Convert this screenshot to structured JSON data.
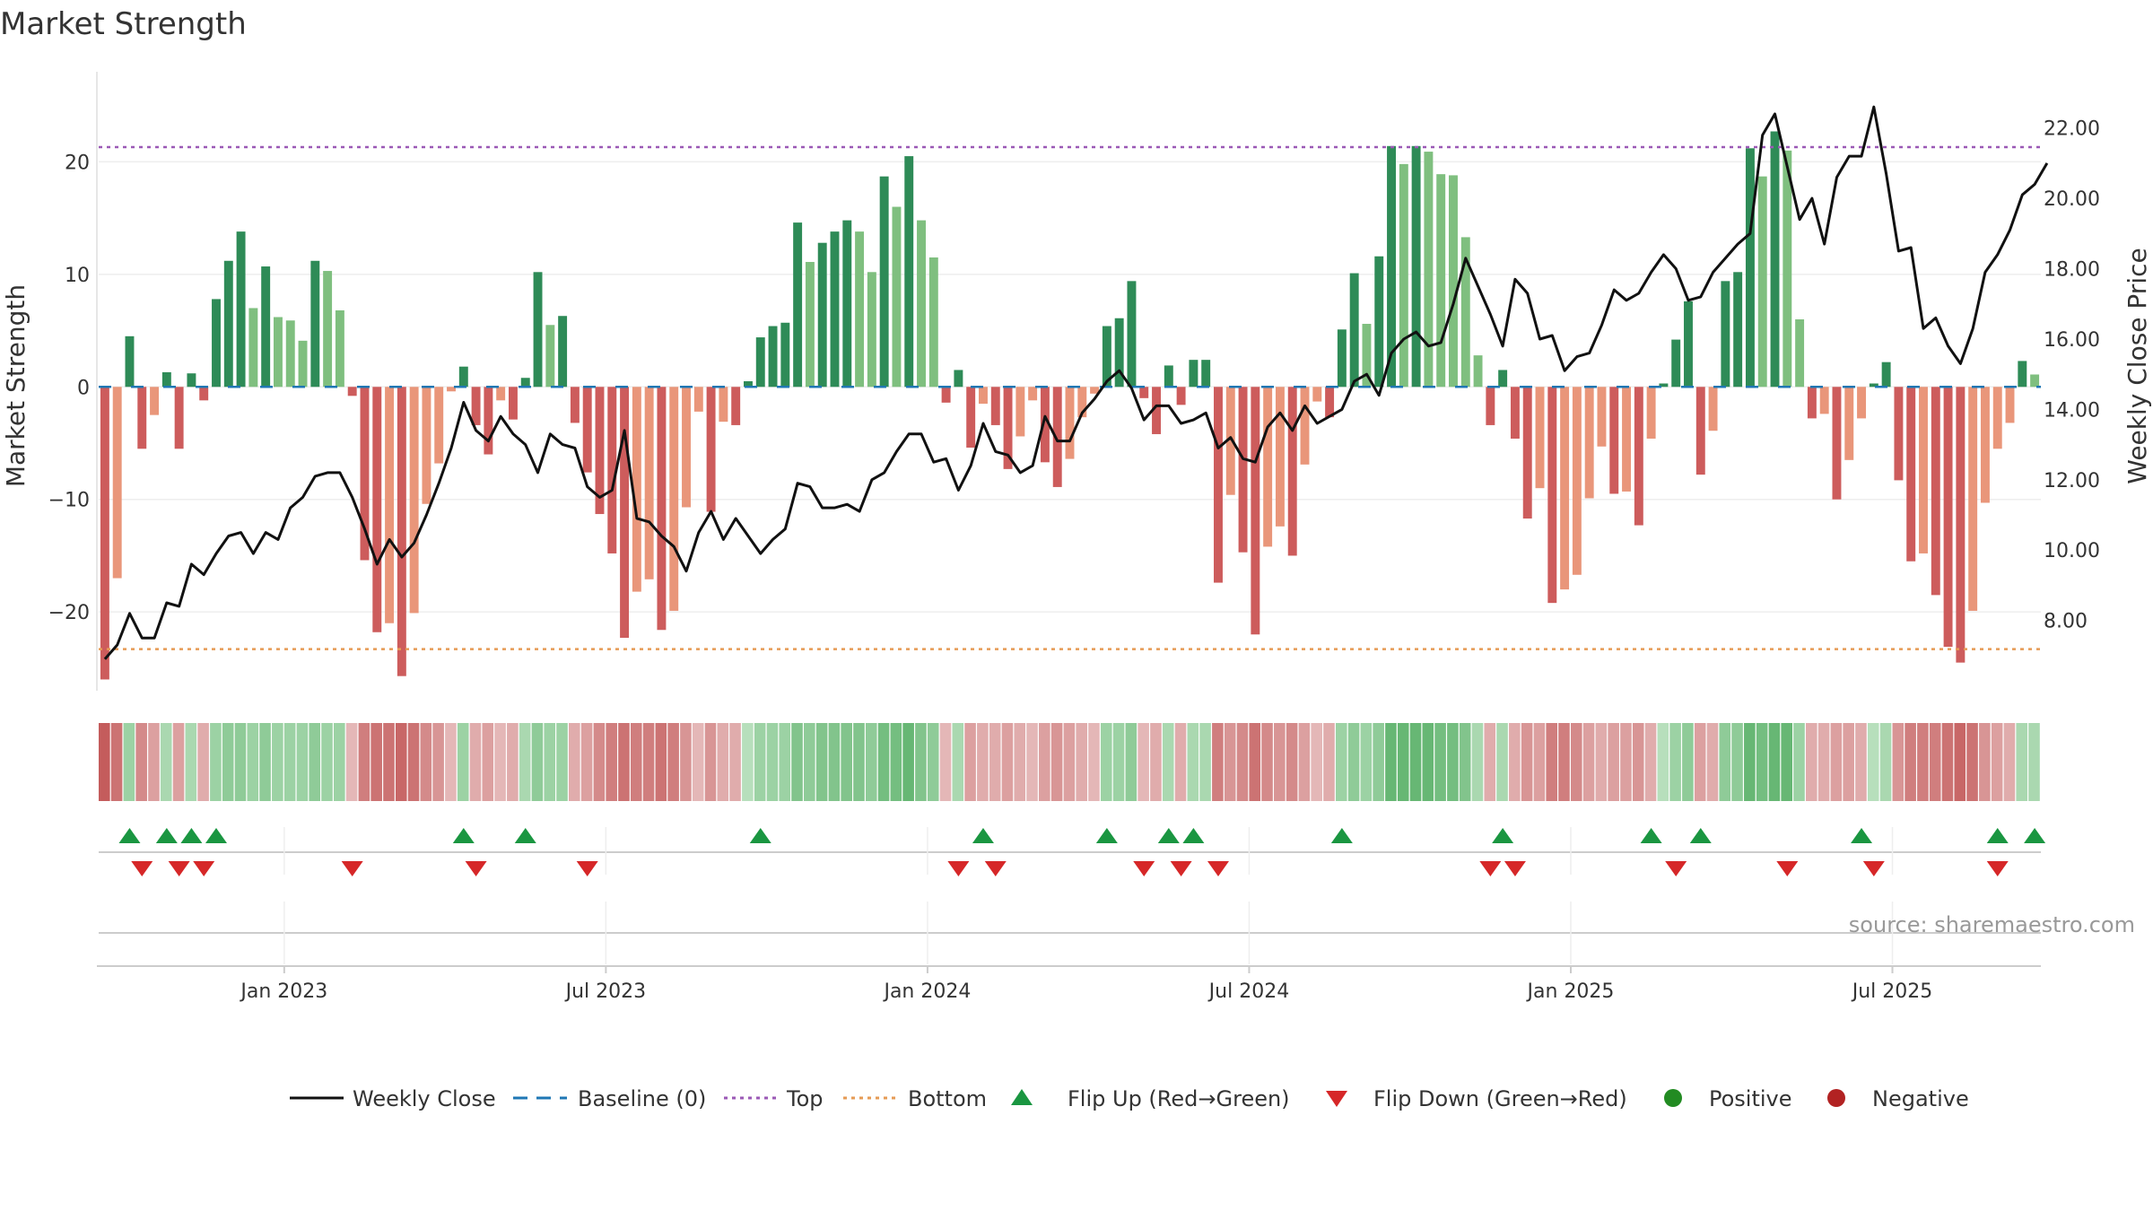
{
  "chart_data": {
    "type": "bar",
    "title": "Market Strength",
    "ylabel": "Market Strength",
    "y2label": "Weekly Close Price",
    "ylim": [
      -27,
      28
    ],
    "y2lim": [
      6.0,
      23.6
    ],
    "yticks": [
      "20",
      "10",
      "0",
      "−10",
      "−20"
    ],
    "y2ticks": [
      "22.00",
      "20.00",
      "18.00",
      "16.00",
      "14.00",
      "12.00",
      "10.00",
      "8.00"
    ],
    "xticks": [
      "Jan 2023",
      "Jul 2023",
      "Jan 2024",
      "Jul 2024",
      "Jan 2025",
      "Jul 2025"
    ],
    "top": 21.3,
    "bottom": -23.3,
    "weeks": 157,
    "start_week_before_jan2023": 15,
    "strength": [
      -26,
      -17,
      4.5,
      -5.5,
      -2.5,
      1.3,
      -5.5,
      1.2,
      -1.2,
      7.8,
      11.2,
      13.8,
      7,
      10.7,
      6.2,
      5.9,
      4.1,
      11.2,
      10.3,
      6.8,
      -0.8,
      -15.4,
      -21.8,
      -21,
      -25.7,
      -20.1,
      -10.4,
      -6.8,
      -0.4,
      1.8,
      -3.4,
      -6,
      -1.2,
      -2.9,
      0.8,
      10.2,
      5.5,
      6.3,
      -3.2,
      -7.6,
      -11.3,
      -14.8,
      -22.3,
      -18.2,
      -17.1,
      -21.6,
      -19.9,
      -10.7,
      -2.2,
      -11.1,
      -3.1,
      -3.4,
      0.5,
      4.4,
      5.4,
      5.7,
      14.6,
      11.1,
      12.8,
      13.8,
      14.8,
      13.8,
      10.2,
      18.7,
      16,
      20.5,
      14.8,
      11.5,
      -1.4,
      1.5,
      -5.4,
      -1.5,
      -3.4,
      -7.3,
      -4.4,
      -1.2,
      -6.7,
      -8.9,
      -6.4,
      -2.7,
      -0.6,
      5.4,
      6.1,
      9.4,
      -1,
      -4.2,
      1.9,
      -1.6,
      2.4,
      2.4,
      -17.4,
      -9.6,
      -14.7,
      -22,
      -14.2,
      -12.4,
      -15,
      -6.9,
      -1.3,
      -2.7,
      5.1,
      10.1,
      5.6,
      11.6,
      21.4,
      19.8,
      21.4,
      20.9,
      18.9,
      18.8,
      13.3,
      2.8,
      -3.4,
      1.5,
      -4.6,
      -11.7,
      -9,
      -19.2,
      -18,
      -16.7,
      -9.9,
      -5.3,
      -9.5,
      -9.3,
      -12.3,
      -4.6,
      0.3,
      4.2,
      7.6,
      -7.8,
      -3.9,
      9.4,
      10.2,
      21.2,
      18.7,
      22.7,
      21,
      6,
      -2.8,
      -2.4,
      -10,
      -6.5,
      -2.8,
      0.3,
      2.2,
      -8.3,
      -15.5,
      -14.8,
      -18.5,
      -23.1,
      -24.5,
      -19.9,
      -10.3,
      -5.5,
      -3.2,
      2.3,
      1.1
    ],
    "close": [
      6.9,
      7.3,
      8.2,
      7.5,
      7.5,
      8.5,
      8.4,
      9.6,
      9.3,
      9.9,
      10.4,
      10.5,
      9.9,
      10.5,
      10.3,
      11.2,
      11.5,
      12.1,
      12.2,
      12.2,
      11.5,
      10.6,
      9.6,
      10.3,
      9.8,
      10.2,
      11,
      11.9,
      12.9,
      14.2,
      13.4,
      13.1,
      13.8,
      13.3,
      13,
      12.2,
      13.3,
      13,
      12.9,
      11.8,
      11.5,
      11.7,
      13.4,
      10.9,
      10.8,
      10.4,
      10.1,
      9.4,
      10.5,
      11.1,
      10.3,
      10.9,
      10.4,
      9.9,
      10.3,
      10.6,
      11.9,
      11.8,
      11.2,
      11.2,
      11.3,
      11.1,
      12,
      12.2,
      12.8,
      13.3,
      13.3,
      12.5,
      12.6,
      11.7,
      12.4,
      13.6,
      12.8,
      12.7,
      12.2,
      12.4,
      13.8,
      13.1,
      13.1,
      13.9,
      14.3,
      14.8,
      15.1,
      14.6,
      13.7,
      14.1,
      14.1,
      13.6,
      13.7,
      13.9,
      12.9,
      13.2,
      12.6,
      12.5,
      13.5,
      13.9,
      13.4,
      14.1,
      13.6,
      13.8,
      14,
      14.8,
      15,
      14.4,
      15.6,
      16,
      16.2,
      15.8,
      15.9,
      17,
      18.3,
      17.5,
      16.7,
      15.8,
      17.7,
      17.3,
      16,
      16.1,
      15.1,
      15.5,
      15.6,
      16.4,
      17.4,
      17.1,
      17.3,
      17.9,
      18.4,
      18,
      17.1,
      17.2,
      17.9,
      18.3,
      18.7,
      19,
      21.8,
      22.4,
      20.9,
      19.4,
      20,
      18.7,
      20.6,
      21.2,
      21.2,
      22.6,
      20.7,
      18.5,
      18.6,
      16.3,
      16.6,
      15.8,
      15.3,
      16.3,
      17.9,
      18.4,
      19.1,
      20.1,
      20.4,
      21
    ],
    "heat": [
      -1,
      -0.8,
      0.4,
      -0.6,
      -0.4,
      0.3,
      -0.4,
      0.3,
      -0.3,
      0.4,
      0.5,
      0.5,
      0.4,
      0.5,
      0.4,
      0.4,
      0.4,
      0.5,
      0.4,
      0.4,
      -0.2,
      -0.7,
      -0.8,
      -0.8,
      -0.9,
      -0.8,
      -0.6,
      -0.5,
      -0.2,
      0.4,
      -0.3,
      -0.4,
      -0.2,
      -0.3,
      0.3,
      0.5,
      0.4,
      0.4,
      -0.3,
      -0.4,
      -0.6,
      -0.7,
      -0.8,
      -0.7,
      -0.7,
      -0.8,
      -0.7,
      -0.5,
      -0.2,
      -0.5,
      -0.3,
      -0.3,
      0.2,
      0.4,
      0.4,
      0.4,
      0.6,
      0.5,
      0.6,
      0.6,
      0.6,
      0.6,
      0.5,
      0.7,
      0.7,
      0.8,
      0.6,
      0.5,
      -0.2,
      0.3,
      -0.4,
      -0.3,
      -0.3,
      -0.4,
      -0.3,
      -0.2,
      -0.4,
      -0.5,
      -0.4,
      -0.3,
      -0.2,
      0.4,
      0.4,
      0.5,
      -0.2,
      -0.3,
      0.3,
      -0.3,
      0.3,
      0.3,
      -0.7,
      -0.5,
      -0.6,
      -0.8,
      -0.6,
      -0.5,
      -0.6,
      -0.4,
      -0.2,
      -0.3,
      0.4,
      0.5,
      0.4,
      0.5,
      0.8,
      0.8,
      0.8,
      0.8,
      0.7,
      0.7,
      0.6,
      0.3,
      -0.3,
      0.3,
      -0.3,
      -0.5,
      -0.4,
      -0.7,
      -0.7,
      -0.6,
      -0.4,
      -0.3,
      -0.4,
      -0.4,
      -0.5,
      -0.3,
      0.2,
      0.4,
      0.5,
      -0.4,
      -0.3,
      0.5,
      0.5,
      0.8,
      0.7,
      0.8,
      0.8,
      0.4,
      -0.3,
      -0.3,
      -0.4,
      -0.4,
      -0.3,
      0.2,
      0.3,
      -0.5,
      -0.7,
      -0.7,
      -0.7,
      -0.8,
      -0.9,
      -0.8,
      -0.5,
      -0.4,
      -0.3,
      0.3,
      0.3
    ],
    "flip_up_weeks": [
      2,
      5,
      7,
      9,
      29,
      34,
      53,
      71,
      81,
      86,
      88,
      100,
      113,
      125,
      129,
      142,
      153,
      156
    ],
    "flip_down_weeks": [
      3,
      6,
      8,
      20,
      30,
      39,
      69,
      72,
      84,
      87,
      90,
      112,
      114,
      127,
      136,
      143,
      153
    ],
    "colors": {
      "pos_dark": "#2e8b57",
      "pos_light": "#7fbf7f",
      "neg_dark": "#cd5c5c",
      "neg_light": "#e9967a",
      "close": "#111111",
      "top": "#9b59b6",
      "bottom": "#e69b55",
      "baseline": "#1f77b4",
      "flip_up": "#1a9641",
      "flip_down": "#d62728",
      "positive": "#228b22",
      "negative": "#b22222"
    },
    "legend": [
      "Weekly Close",
      "Baseline (0)",
      "Top",
      "Bottom",
      "Flip Up (Red→Green)",
      "Flip Down (Green→Red)",
      "Positive",
      "Negative"
    ]
  },
  "source": "source: sharemaestro.com"
}
